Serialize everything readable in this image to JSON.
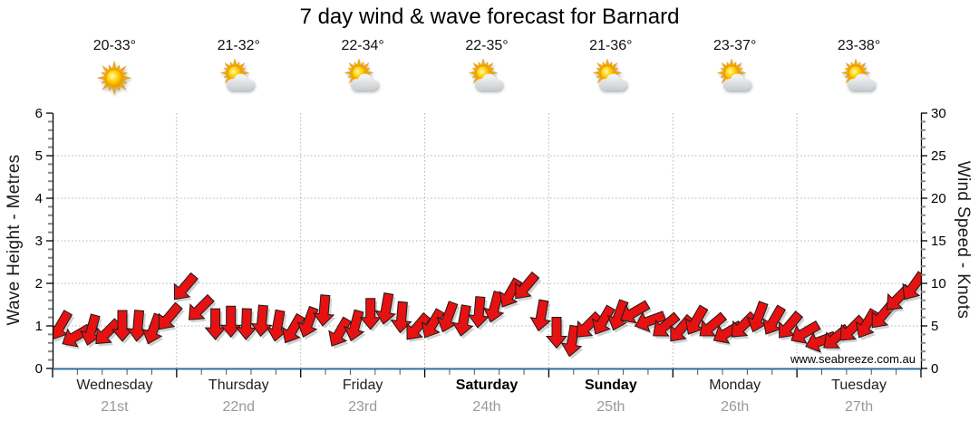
{
  "title": "7 day wind & wave forecast for Barnard",
  "watermark": "www.seabreeze.com.au",
  "days": [
    {
      "name": "Wednesday",
      "date": "21st",
      "temp": "20-33°",
      "icon": "sunny",
      "bold": false
    },
    {
      "name": "Thursday",
      "date": "22nd",
      "temp": "21-32°",
      "icon": "partly-cloudy",
      "bold": false
    },
    {
      "name": "Friday",
      "date": "23rd",
      "temp": "22-34°",
      "icon": "partly-cloudy",
      "bold": false
    },
    {
      "name": "Saturday",
      "date": "24th",
      "temp": "22-35°",
      "icon": "partly-cloudy",
      "bold": true
    },
    {
      "name": "Sunday",
      "date": "25th",
      "temp": "21-36°",
      "icon": "partly-cloudy",
      "bold": true
    },
    {
      "name": "Monday",
      "date": "26th",
      "temp": "23-37°",
      "icon": "partly-cloudy",
      "bold": false
    },
    {
      "name": "Tuesday",
      "date": "27th",
      "temp": "23-38°",
      "icon": "partly-cloudy",
      "bold": false
    }
  ],
  "colors": {
    "arrow": "#E61212",
    "arrow_outline": "#1a1a1a",
    "arrow_shadow": "#9a9a9a",
    "x_axis_line": "#2E6D9E",
    "grid": "#b3b3b3",
    "minor_tick": "#888888",
    "watermark": "#cccccc"
  },
  "chart_data": {
    "type": "wind-arrows",
    "title": "7 day wind & wave forecast for Barnard",
    "categories": [
      "Wednesday",
      "Thursday",
      "Friday",
      "Saturday",
      "Sunday",
      "Monday",
      "Tuesday"
    ],
    "points_per_day": 8,
    "left_axis": {
      "label": "Wave Height - Metres",
      "min": 0,
      "max": 6,
      "tick_step": 1,
      "minor_step": 0.2
    },
    "right_axis": {
      "label": "Wind Speed - Knots",
      "min": 0,
      "max": 30,
      "tick_step": 5,
      "minor_step": 1
    },
    "grid": true,
    "wind_speed_knots": [
      5.0,
      3.8,
      4.5,
      4.2,
      5.0,
      5.0,
      4.6,
      6.0,
      9.5,
      7.0,
      5.2,
      5.5,
      5.2,
      5.6,
      5.0,
      4.6,
      5.4,
      6.8,
      4.2,
      5.0,
      6.4,
      7.0,
      6.0,
      4.8,
      5.2,
      6.0,
      5.6,
      6.6,
      7.2,
      8.8,
      9.6,
      6.2,
      4.2,
      3.2,
      5.0,
      5.6,
      6.2,
      6.6,
      5.6,
      5.0,
      4.6,
      5.6,
      5.0,
      4.2,
      5.0,
      6.0,
      5.6,
      5.0,
      4.2,
      3.2,
      3.6,
      4.6,
      5.2,
      6.2,
      8.2,
      9.6
    ],
    "wind_dir_deg": [
      120,
      150,
      105,
      135,
      90,
      95,
      110,
      130,
      130,
      135,
      90,
      90,
      92,
      95,
      100,
      120,
      110,
      95,
      120,
      105,
      90,
      100,
      95,
      130,
      120,
      110,
      100,
      95,
      105,
      120,
      130,
      100,
      90,
      100,
      135,
      120,
      110,
      150,
      160,
      140,
      130,
      120,
      140,
      150,
      135,
      110,
      120,
      130,
      150,
      160,
      140,
      135,
      120,
      130,
      135,
      125
    ]
  }
}
